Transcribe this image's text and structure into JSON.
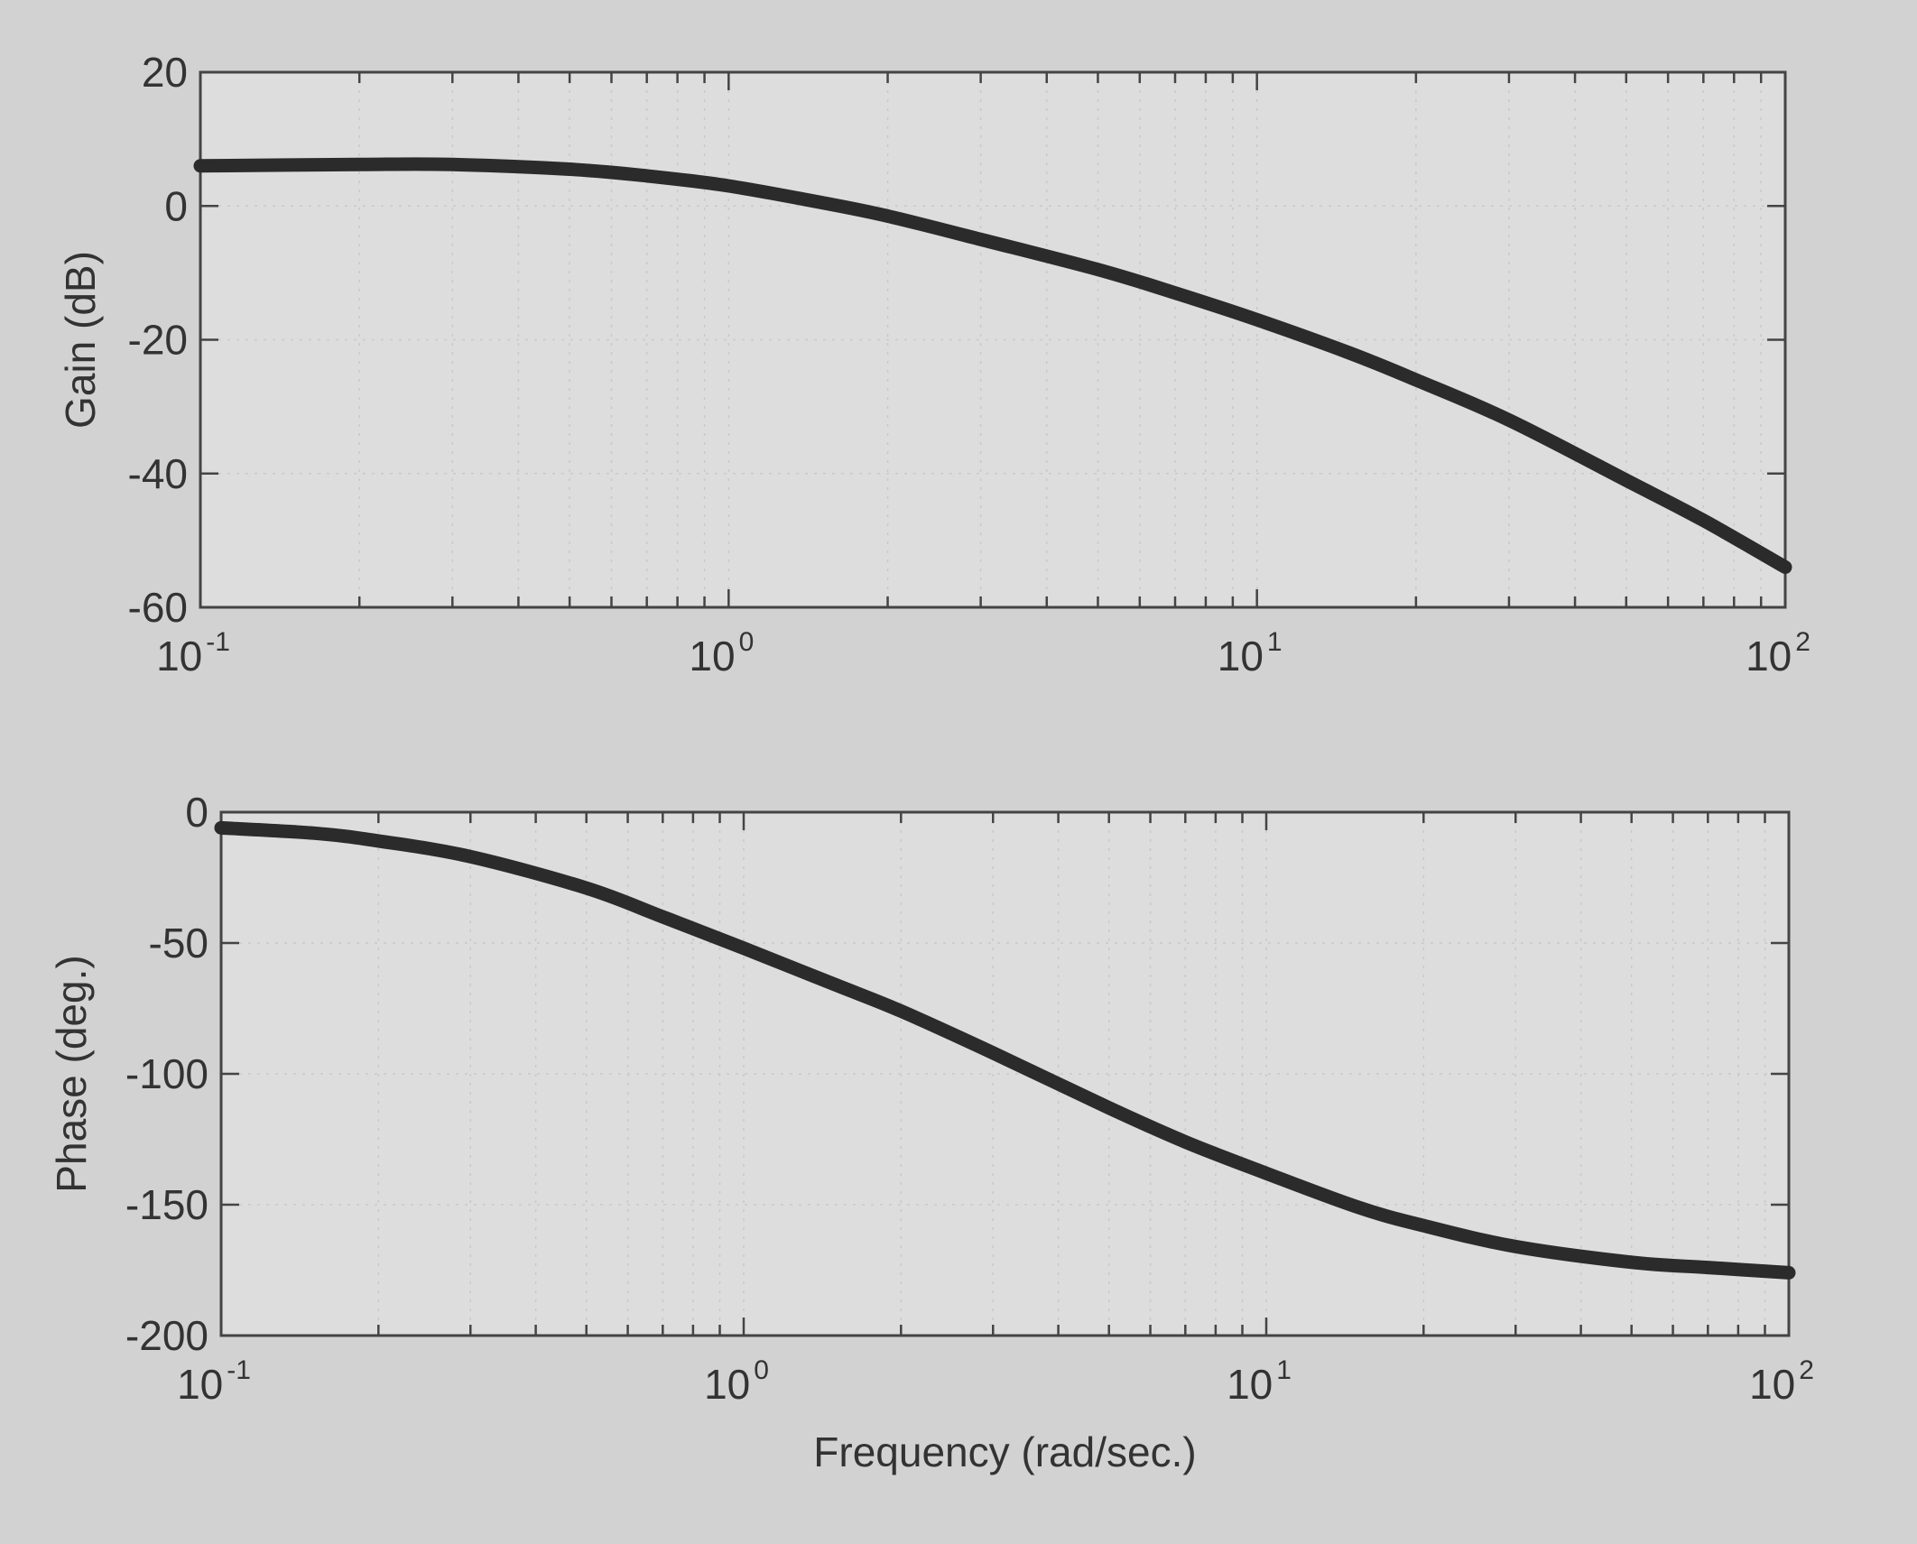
{
  "chart_data": [
    {
      "type": "line",
      "ylabel": "Gain (dB)",
      "xlabel": "",
      "xscale": "log",
      "xlim": [
        0.1,
        100
      ],
      "ylim": [
        -60,
        20
      ],
      "xticks": [
        {
          "base": "10",
          "exp": "-1"
        },
        {
          "base": "10",
          "exp": "0"
        },
        {
          "base": "10",
          "exp": "1"
        },
        {
          "base": "10",
          "exp": "2"
        }
      ],
      "yticks": [
        "20",
        "0",
        "-20",
        "-40",
        "-60"
      ],
      "grid": true,
      "series": [
        {
          "x": [
            0.1,
            0.2,
            0.3,
            0.5,
            0.7,
            1,
            1.5,
            2,
            3,
            5,
            7,
            10,
            15,
            20,
            30,
            50,
            70,
            100
          ],
          "y": [
            6,
            6.2,
            6.2,
            5.5,
            4.5,
            3,
            0.5,
            -1.5,
            -5,
            -9.5,
            -13,
            -17,
            -22,
            -26,
            -32,
            -41,
            -47,
            -54
          ]
        }
      ]
    },
    {
      "type": "line",
      "ylabel": "Phase (deg.)",
      "xlabel": "Frequency (rad/sec.)",
      "xscale": "log",
      "xlim": [
        0.1,
        100
      ],
      "ylim": [
        -200,
        0
      ],
      "xticks": [
        {
          "base": "10",
          "exp": "-1"
        },
        {
          "base": "10",
          "exp": "0"
        },
        {
          "base": "10",
          "exp": "1"
        },
        {
          "base": "10",
          "exp": "2"
        }
      ],
      "yticks": [
        "0",
        "-50",
        "-100",
        "-150",
        "-200"
      ],
      "grid": true,
      "series": [
        {
          "x": [
            0.1,
            0.15,
            0.2,
            0.3,
            0.5,
            0.7,
            1,
            1.5,
            2,
            3,
            5,
            7,
            10,
            15,
            20,
            30,
            50,
            70,
            100
          ],
          "y": [
            -6,
            -8,
            -11,
            -17,
            -29,
            -40,
            -52,
            -66,
            -76,
            -92,
            -113,
            -126,
            -138,
            -151,
            -158,
            -166,
            -172,
            -174,
            -176
          ]
        }
      ]
    }
  ]
}
